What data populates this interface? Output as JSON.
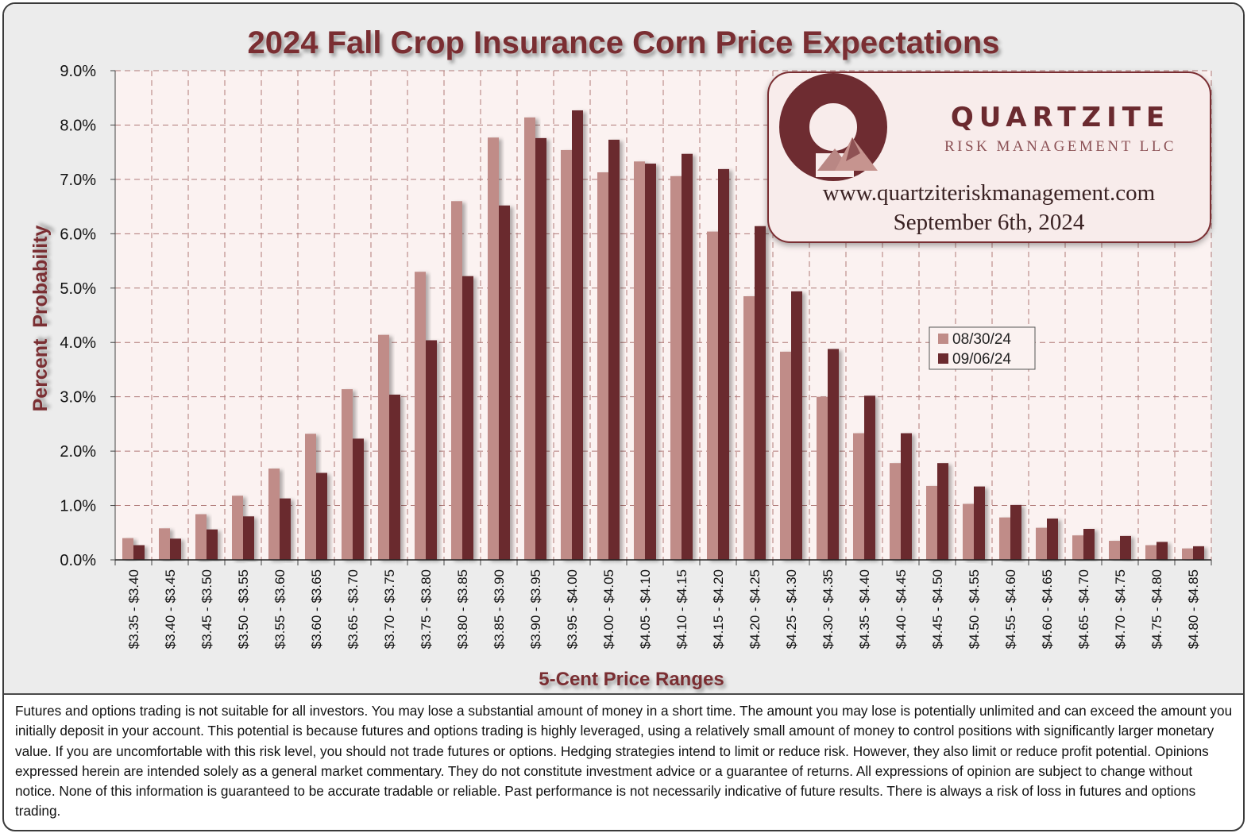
{
  "chart_data": {
    "type": "bar",
    "title": "2024 Fall Crop Insurance Corn Price Expectations",
    "xlabel": "5-Cent Price Ranges",
    "ylabel": "Percent  Probability",
    "ylim": [
      0,
      9
    ],
    "yticks": [
      "0.0%",
      "1.0%",
      "2.0%",
      "3.0%",
      "4.0%",
      "5.0%",
      "6.0%",
      "7.0%",
      "8.0%",
      "9.0%"
    ],
    "grid": true,
    "legend_position": "center-right",
    "categories": [
      "$3.35 - $3.40",
      "$3.40 - $3.45",
      "$3.45 - $3.50",
      "$3.50 - $3.55",
      "$3.55 - $3.60",
      "$3.60 - $3.65",
      "$3.65 - $3.70",
      "$3.70 - $3.75",
      "$3.75 - $3.80",
      "$3.80 - $3.85",
      "$3.85 - $3.90",
      "$3.90 - $3.95",
      "$3.95 - $4.00",
      "$4.00 - $4.05",
      "$4.05 - $4.10",
      "$4.10 - $4.15",
      "$4.15 - $4.20",
      "$4.20 - $4.25",
      "$4.25 - $4.30",
      "$4.30 - $4.35",
      "$4.35 - $4.40",
      "$4.40 - $4.45",
      "$4.45 - $4.50",
      "$4.50 - $4.55",
      "$4.55 - $4.60",
      "$4.60 - $4.65",
      "$4.65 - $4.70",
      "$4.70 - $4.75",
      "$4.75 - $4.80",
      "$4.80 - $4.85"
    ],
    "series": [
      {
        "name": "08/30/24",
        "color": "#c08c88",
        "values": [
          0.4,
          0.58,
          0.84,
          1.18,
          1.68,
          2.32,
          3.14,
          4.14,
          5.3,
          6.6,
          7.77,
          8.14,
          7.54,
          7.13,
          7.33,
          7.06,
          6.04,
          4.85,
          3.83,
          3.0,
          2.33,
          1.78,
          1.36,
          1.03,
          0.78,
          0.59,
          0.45,
          0.35,
          0.27,
          0.21
        ]
      },
      {
        "name": "09/06/24",
        "color": "#6b2a2f",
        "values": [
          0.27,
          0.39,
          0.56,
          0.8,
          1.13,
          1.6,
          2.23,
          3.04,
          4.04,
          5.22,
          6.52,
          7.76,
          8.27,
          7.73,
          7.29,
          7.47,
          7.19,
          6.14,
          4.94,
          3.88,
          3.02,
          2.33,
          1.78,
          1.35,
          1.01,
          0.76,
          0.57,
          0.44,
          0.33,
          0.25
        ]
      }
    ]
  },
  "logo": {
    "company": "QUARTZITE",
    "subtitle": "RISK MANAGEMENT LLC",
    "website": "www.quartziteriskmanagement.com",
    "date": "September 6th, 2024"
  },
  "disclaimer": "Futures and options trading is not suitable for all investors. You may lose a substantial amount of money in a short time. The amount you may lose is potentially unlimited and can exceed the amount you initially deposit in your account. This potential is because futures and options trading is highly leveraged, using a relatively small amount of money to control positions with significantly larger monetary value. If you are uncomfortable with this risk level, you should not trade futures or options. Hedging strategies intend to limit or reduce risk. However, they also limit or reduce profit potential. Opinions expressed herein are intended solely as a general market commentary. They do not constitute investment advice or a guarantee of returns. All expressions of opinion are subject to change without notice. None of this information is guaranteed to be accurate tradable or reliable. Past performance is not necessarily indicative of future results. There is always a risk of loss in futures and options trading.",
  "colors": {
    "title": "#7a2e33",
    "plot_bg": "#fbf2f1",
    "grid": "#b07a78",
    "light_bar": "#c08c88",
    "dark_bar": "#6b2a2f"
  }
}
